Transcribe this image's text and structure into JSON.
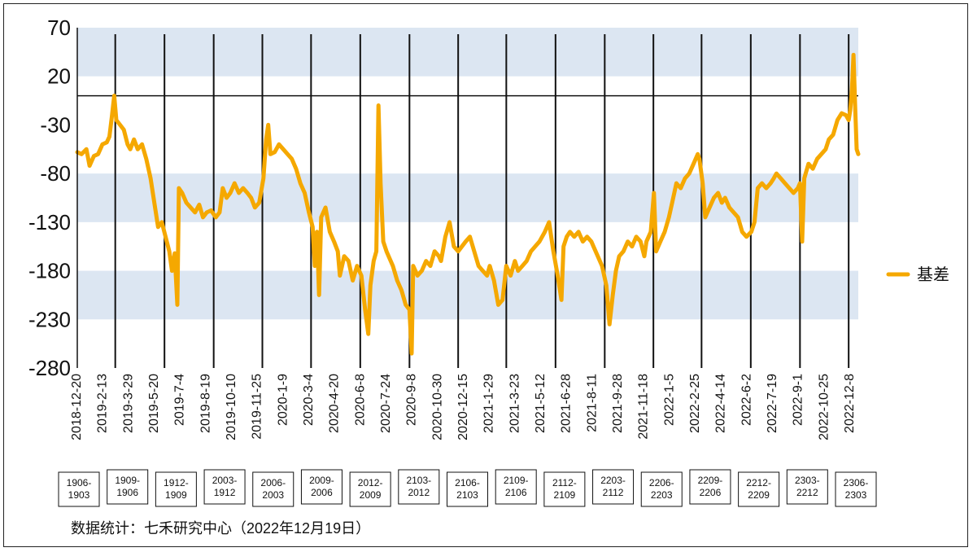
{
  "chart_data": {
    "type": "line",
    "title": "",
    "xlabel": "",
    "ylabel": "",
    "ylim": [
      -280,
      70
    ],
    "yticks": [
      70,
      20,
      -30,
      -80,
      -130,
      -180,
      -230,
      -280
    ],
    "xlim": [
      "2018-12-20",
      "2022-12-19"
    ],
    "x_tick_labels": [
      "2018-12-20",
      "2019-2-13",
      "2019-3-29",
      "2019-5-20",
      "2019-7-4",
      "2019-8-19",
      "2019-10-10",
      "2019-11-25",
      "2020-1-9",
      "2020-3-4",
      "2020-4-20",
      "2020-6-8",
      "2020-7-24",
      "2020-9-8",
      "2020-10-30",
      "2020-12-15",
      "2021-1-29",
      "2021-3-23",
      "2021-5-12",
      "2021-6-28",
      "2021-8-11",
      "2021-9-28",
      "2021-11-18",
      "2022-1-5",
      "2022-2-25",
      "2022-4-14",
      "2022-6-2",
      "2022-7-19",
      "2022-9-1",
      "2022-10-25",
      "2022-12-8"
    ],
    "contract_switch_dates": [
      "2019-3-1",
      "2019-6-1",
      "2019-9-1",
      "2019-12-1",
      "2020-3-1",
      "2020-6-1",
      "2020-9-1",
      "2020-12-1",
      "2021-3-1",
      "2021-6-1",
      "2021-9-1",
      "2021-12-1",
      "2022-3-1",
      "2022-6-1",
      "2022-9-1",
      "2022-12-1"
    ],
    "contract_labels": [
      "1906-\n1903",
      "1909-\n1906",
      "1912-\n1909",
      "2003-\n1912",
      "2006-\n2003",
      "2009-\n2006",
      "2012-\n2009",
      "2103-\n2012",
      "2106-\n2103",
      "2109-\n2106",
      "2112-\n2109",
      "2203-\n2112",
      "2206-\n2203",
      "2209-\n2206",
      "2212-\n2209",
      "2303-\n2212",
      "2306-\n2303"
    ],
    "grid_bands": [
      [
        20,
        70
      ],
      [
        -130,
        -80
      ],
      [
        -230,
        -180
      ]
    ],
    "zero_line": 0,
    "legend_position": "right",
    "series": [
      {
        "name": "基差",
        "color": "#f5a800",
        "points": [
          [
            "2018-12-20",
            -58
          ],
          [
            "2018-12-28",
            -60
          ],
          [
            "2019-1-6",
            -55
          ],
          [
            "2019-1-12",
            -72
          ],
          [
            "2019-1-20",
            -62
          ],
          [
            "2019-1-28",
            -60
          ],
          [
            "2019-2-5",
            -50
          ],
          [
            "2019-2-13",
            -48
          ],
          [
            "2019-2-18",
            -42
          ],
          [
            "2019-2-23",
            -20
          ],
          [
            "2019-2-27",
            0
          ],
          [
            "2019-3-3",
            -25
          ],
          [
            "2019-3-10",
            -30
          ],
          [
            "2019-3-17",
            -35
          ],
          [
            "2019-3-24",
            -50
          ],
          [
            "2019-3-29",
            -55
          ],
          [
            "2019-4-5",
            -45
          ],
          [
            "2019-4-12",
            -55
          ],
          [
            "2019-4-20",
            -50
          ],
          [
            "2019-4-28",
            -65
          ],
          [
            "2019-5-6",
            -85
          ],
          [
            "2019-5-13",
            -110
          ],
          [
            "2019-5-20",
            -135
          ],
          [
            "2019-5-27",
            -130
          ],
          [
            "2019-6-3",
            -145
          ],
          [
            "2019-6-10",
            -160
          ],
          [
            "2019-6-15",
            -180
          ],
          [
            "2019-6-20",
            -162
          ],
          [
            "2019-6-25",
            -215
          ],
          [
            "2019-6-28",
            -95
          ],
          [
            "2019-7-4",
            -100
          ],
          [
            "2019-7-12",
            -110
          ],
          [
            "2019-7-20",
            -115
          ],
          [
            "2019-7-28",
            -120
          ],
          [
            "2019-8-5",
            -112
          ],
          [
            "2019-8-12",
            -125
          ],
          [
            "2019-8-19",
            -120
          ],
          [
            "2019-8-27",
            -118
          ],
          [
            "2019-9-5",
            -125
          ],
          [
            "2019-9-12",
            -120
          ],
          [
            "2019-9-18",
            -95
          ],
          [
            "2019-9-25",
            -105
          ],
          [
            "2019-10-2",
            -100
          ],
          [
            "2019-10-10",
            -90
          ],
          [
            "2019-10-18",
            -100
          ],
          [
            "2019-10-26",
            -95
          ],
          [
            "2019-11-3",
            -100
          ],
          [
            "2019-11-10",
            -105
          ],
          [
            "2019-11-17",
            -115
          ],
          [
            "2019-11-25",
            -110
          ],
          [
            "2019-12-3",
            -85
          ],
          [
            "2019-12-8",
            -45
          ],
          [
            "2019-12-12",
            -30
          ],
          [
            "2019-12-16",
            -60
          ],
          [
            "2019-12-24",
            -58
          ],
          [
            "2020-1-1",
            -50
          ],
          [
            "2020-1-9",
            -55
          ],
          [
            "2020-1-17",
            -60
          ],
          [
            "2020-1-25",
            -65
          ],
          [
            "2020-2-2",
            -75
          ],
          [
            "2020-2-10",
            -90
          ],
          [
            "2020-2-18",
            -100
          ],
          [
            "2020-2-26",
            -120
          ],
          [
            "2020-3-4",
            -135
          ],
          [
            "2020-3-8",
            -175
          ],
          [
            "2020-3-12",
            -140
          ],
          [
            "2020-3-16",
            -205
          ],
          [
            "2020-3-20",
            -125
          ],
          [
            "2020-3-28",
            -115
          ],
          [
            "2020-4-5",
            -140
          ],
          [
            "2020-4-13",
            -150
          ],
          [
            "2020-4-20",
            -160
          ],
          [
            "2020-4-24",
            -185
          ],
          [
            "2020-5-2",
            -165
          ],
          [
            "2020-5-10",
            -170
          ],
          [
            "2020-5-18",
            -190
          ],
          [
            "2020-5-26",
            -175
          ],
          [
            "2020-6-3",
            -185
          ],
          [
            "2020-6-10",
            -220
          ],
          [
            "2020-6-16",
            -245
          ],
          [
            "2020-6-20",
            -195
          ],
          [
            "2020-6-26",
            -170
          ],
          [
            "2020-7-1",
            -160
          ],
          [
            "2020-7-5",
            -10
          ],
          [
            "2020-7-9",
            -90
          ],
          [
            "2020-7-14",
            -150
          ],
          [
            "2020-7-20",
            -160
          ],
          [
            "2020-7-24",
            -165
          ],
          [
            "2020-8-1",
            -175
          ],
          [
            "2020-8-9",
            -190
          ],
          [
            "2020-8-17",
            -200
          ],
          [
            "2020-8-25",
            -215
          ],
          [
            "2020-9-1",
            -220
          ],
          [
            "2020-9-5",
            -265
          ],
          [
            "2020-9-8",
            -175
          ],
          [
            "2020-9-16",
            -185
          ],
          [
            "2020-9-24",
            -180
          ],
          [
            "2020-10-2",
            -170
          ],
          [
            "2020-10-10",
            -175
          ],
          [
            "2020-10-18",
            -160
          ],
          [
            "2020-10-26",
            -165
          ],
          [
            "2020-10-30",
            -170
          ],
          [
            "2020-11-7",
            -145
          ],
          [
            "2020-11-15",
            -130
          ],
          [
            "2020-11-23",
            -155
          ],
          [
            "2020-12-1",
            -160
          ],
          [
            "2020-12-8",
            -155
          ],
          [
            "2020-12-15",
            -150
          ],
          [
            "2020-12-23",
            -145
          ],
          [
            "2020-12-31",
            -160
          ],
          [
            "2021-1-8",
            -175
          ],
          [
            "2021-1-16",
            -180
          ],
          [
            "2021-1-24",
            -185
          ],
          [
            "2021-1-29",
            -175
          ],
          [
            "2021-2-6",
            -190
          ],
          [
            "2021-2-14",
            -215
          ],
          [
            "2021-2-22",
            -210
          ],
          [
            "2021-3-1",
            -175
          ],
          [
            "2021-3-9",
            -185
          ],
          [
            "2021-3-17",
            -170
          ],
          [
            "2021-3-23",
            -180
          ],
          [
            "2021-3-31",
            -175
          ],
          [
            "2021-4-8",
            -170
          ],
          [
            "2021-4-16",
            -160
          ],
          [
            "2021-4-24",
            -155
          ],
          [
            "2021-5-2",
            -150
          ],
          [
            "2021-5-12",
            -140
          ],
          [
            "2021-5-20",
            -130
          ],
          [
            "2021-5-28",
            -160
          ],
          [
            "2021-6-5",
            -185
          ],
          [
            "2021-6-12",
            -210
          ],
          [
            "2021-6-16",
            -155
          ],
          [
            "2021-6-22",
            -145
          ],
          [
            "2021-6-28",
            -140
          ],
          [
            "2021-7-6",
            -145
          ],
          [
            "2021-7-14",
            -140
          ],
          [
            "2021-7-22",
            -150
          ],
          [
            "2021-7-30",
            -145
          ],
          [
            "2021-8-7",
            -150
          ],
          [
            "2021-8-11",
            -155
          ],
          [
            "2021-8-19",
            -165
          ],
          [
            "2021-8-27",
            -175
          ],
          [
            "2021-9-4",
            -195
          ],
          [
            "2021-9-10",
            -235
          ],
          [
            "2021-9-16",
            -205
          ],
          [
            "2021-9-22",
            -180
          ],
          [
            "2021-9-28",
            -165
          ],
          [
            "2021-10-6",
            -160
          ],
          [
            "2021-10-14",
            -150
          ],
          [
            "2021-10-22",
            -155
          ],
          [
            "2021-10-30",
            -145
          ],
          [
            "2021-11-7",
            -150
          ],
          [
            "2021-11-14",
            -165
          ],
          [
            "2021-11-18",
            -150
          ],
          [
            "2021-11-26",
            -140
          ],
          [
            "2021-12-2",
            -100
          ],
          [
            "2021-12-6",
            -160
          ],
          [
            "2021-12-14",
            -150
          ],
          [
            "2021-12-22",
            -140
          ],
          [
            "2021-12-30",
            -125
          ],
          [
            "2022-1-5",
            -110
          ],
          [
            "2022-1-13",
            -90
          ],
          [
            "2022-1-21",
            -95
          ],
          [
            "2022-1-29",
            -85
          ],
          [
            "2022-2-6",
            -80
          ],
          [
            "2022-2-14",
            -70
          ],
          [
            "2022-2-22",
            -60
          ],
          [
            "2022-2-25",
            -65
          ],
          [
            "2022-3-3",
            -90
          ],
          [
            "2022-3-8",
            -125
          ],
          [
            "2022-3-16",
            -115
          ],
          [
            "2022-3-24",
            -105
          ],
          [
            "2022-4-1",
            -100
          ],
          [
            "2022-4-8",
            -110
          ],
          [
            "2022-4-14",
            -105
          ],
          [
            "2022-4-22",
            -115
          ],
          [
            "2022-4-30",
            -120
          ],
          [
            "2022-5-8",
            -125
          ],
          [
            "2022-5-16",
            -140
          ],
          [
            "2022-5-24",
            -145
          ],
          [
            "2022-6-2",
            -140
          ],
          [
            "2022-6-8",
            -130
          ],
          [
            "2022-6-14",
            -95
          ],
          [
            "2022-6-22",
            -90
          ],
          [
            "2022-6-30",
            -95
          ],
          [
            "2022-7-8",
            -90
          ],
          [
            "2022-7-14",
            -85
          ],
          [
            "2022-7-19",
            -80
          ],
          [
            "2022-7-27",
            -85
          ],
          [
            "2022-8-4",
            -90
          ],
          [
            "2022-8-12",
            -95
          ],
          [
            "2022-8-20",
            -100
          ],
          [
            "2022-8-28",
            -95
          ],
          [
            "2022-9-1",
            -90
          ],
          [
            "2022-9-5",
            -150
          ],
          [
            "2022-9-9",
            -85
          ],
          [
            "2022-9-17",
            -70
          ],
          [
            "2022-9-25",
            -75
          ],
          [
            "2022-10-3",
            -65
          ],
          [
            "2022-10-11",
            -60
          ],
          [
            "2022-10-19",
            -55
          ],
          [
            "2022-10-25",
            -45
          ],
          [
            "2022-11-2",
            -40
          ],
          [
            "2022-11-10",
            -25
          ],
          [
            "2022-11-18",
            -18
          ],
          [
            "2022-11-26",
            -20
          ],
          [
            "2022-12-1",
            -25
          ],
          [
            "2022-12-4",
            -15
          ],
          [
            "2022-12-7",
            5
          ],
          [
            "2022-12-10",
            42
          ],
          [
            "2022-12-13",
            -10
          ],
          [
            "2022-12-16",
            -55
          ],
          [
            "2022-12-19",
            -60
          ]
        ]
      }
    ]
  },
  "legend": {
    "label": "基差",
    "color": "#f5a800"
  },
  "source_note": "数据统计：七禾研究中心（2022年12月19日）",
  "colors": {
    "band": "#dce6f2",
    "line": "#f5a800",
    "axis": "#111111"
  }
}
